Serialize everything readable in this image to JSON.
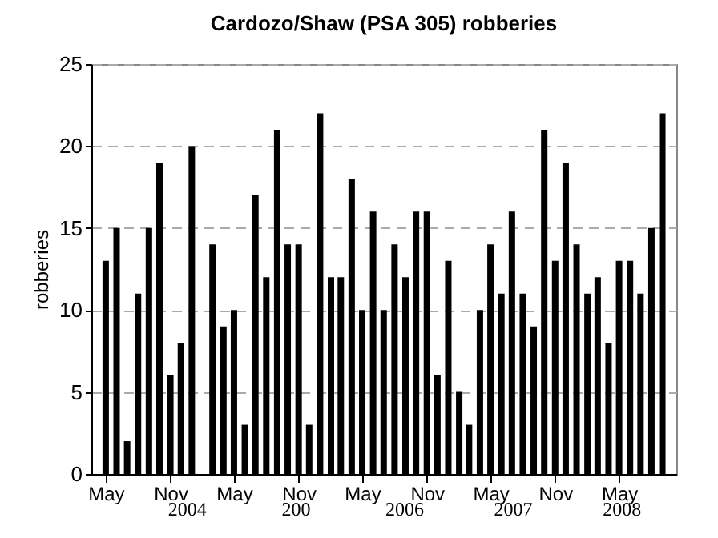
{
  "chart_data": {
    "type": "bar",
    "title": "Cardozo/Shaw (PSA 305) robberies",
    "ylabel": "robberies",
    "x": [
      "2004-05",
      "2004-06",
      "2004-07",
      "2004-08",
      "2004-09",
      "2004-10",
      "2004-11",
      "2004-12",
      "2005-01",
      "2005-02",
      "2005-03",
      "2005-04",
      "2005-05",
      "2005-06",
      "2005-07",
      "2005-08",
      "2005-09",
      "2005-10",
      "2005-11",
      "2005-12",
      "2006-01",
      "2006-02",
      "2006-03",
      "2006-04",
      "2006-05",
      "2006-06",
      "2006-07",
      "2006-08",
      "2006-09",
      "2006-10",
      "2006-11",
      "2006-12",
      "2007-01",
      "2007-02",
      "2007-03",
      "2007-04",
      "2007-05",
      "2007-06",
      "2007-07",
      "2007-08",
      "2007-09",
      "2007-10",
      "2007-11",
      "2007-12",
      "2008-01",
      "2008-02",
      "2008-03",
      "2008-04",
      "2008-05",
      "2008-06",
      "2008-07",
      "2008-08",
      "2008-09"
    ],
    "values": [
      13,
      15,
      2,
      11,
      15,
      19,
      6,
      8,
      20,
      null,
      14,
      9,
      10,
      3,
      17,
      12,
      21,
      14,
      14,
      3,
      22,
      12,
      12,
      18,
      10,
      16,
      10,
      14,
      12,
      16,
      16,
      6,
      13,
      5,
      3,
      10,
      14,
      11,
      16,
      11,
      9,
      21,
      13,
      19,
      14,
      11,
      12,
      8,
      13,
      13,
      11,
      15,
      22
    ],
    "color": "#000000",
    "xlim": [
      "2004-04-13",
      "2008-09-18"
    ],
    "xticks": [
      {
        "value": "2004-05",
        "label": "May"
      },
      {
        "value": "2004-11",
        "label": "Nov"
      },
      {
        "value": "2005-05",
        "label": "May"
      },
      {
        "value": "2005-11",
        "label": "Nov"
      },
      {
        "value": "2006-05",
        "label": "May"
      },
      {
        "value": "2006-11",
        "label": "Nov"
      },
      {
        "value": "2007-05",
        "label": "May"
      },
      {
        "value": "2007-11",
        "label": "Nov"
      },
      {
        "value": "2008-05",
        "label": "May"
      }
    ],
    "ylim": [
      0,
      25
    ],
    "yticks": [
      0,
      5,
      10,
      15,
      20,
      25
    ],
    "grid": "y",
    "annotations": [
      "2004",
      "200",
      "2006",
      "2007",
      "2008"
    ]
  }
}
